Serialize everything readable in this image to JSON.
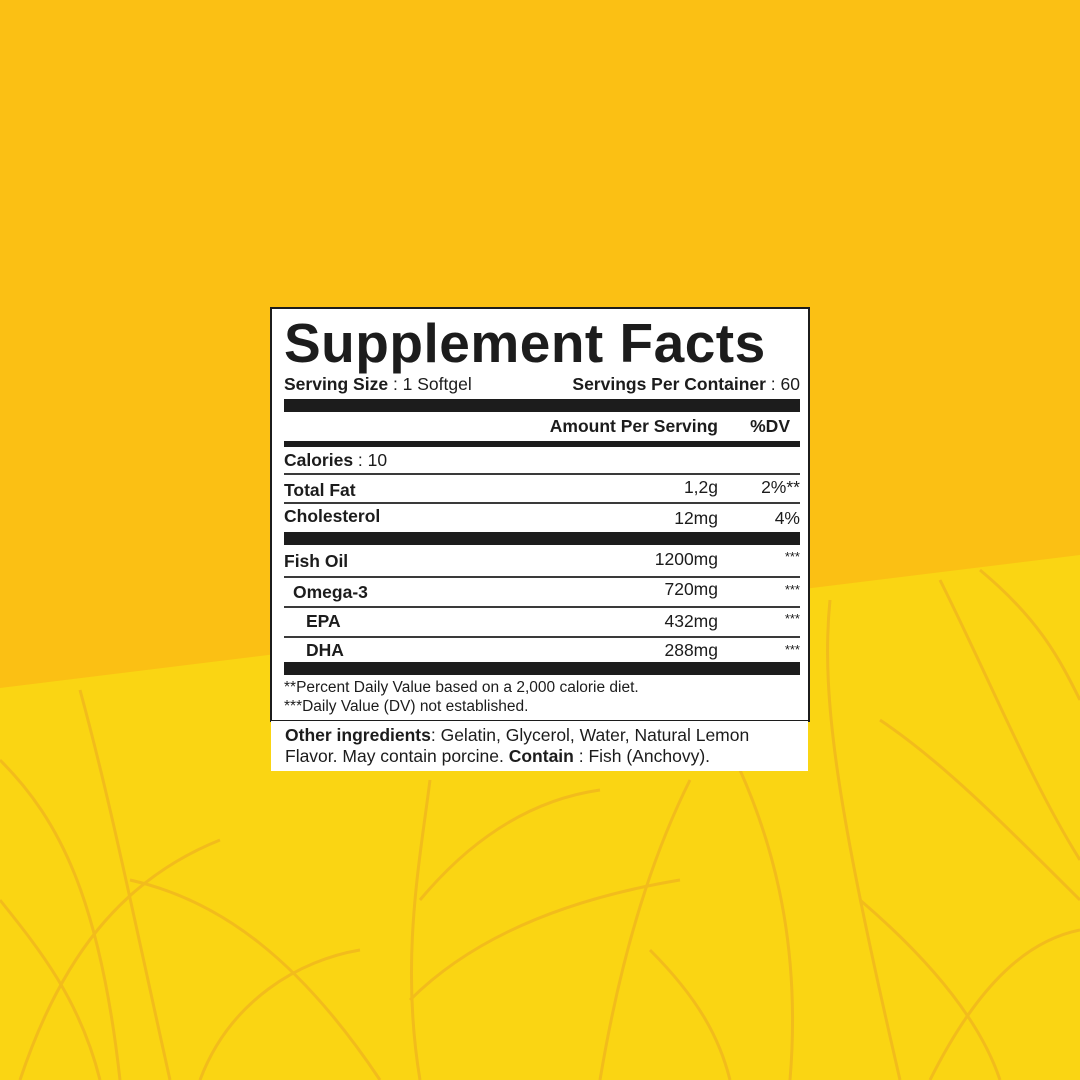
{
  "colors": {
    "background_top": "#FBC014",
    "background_bottom": "#FAD513",
    "leaf_lines": "#F5BE1A",
    "label_ink": "#1c1c1c"
  },
  "panel": {
    "title": "Supplement Facts",
    "serving_size_label": "Serving Size",
    "serving_size_value": " : 1 Softgel",
    "servings_label": "Servings Per Container",
    "servings_value": " : 60",
    "col_amount": "Amount Per Serving",
    "col_dv": "%DV",
    "calories_label": "Calories",
    "calories_value": " : 10",
    "rows": [
      {
        "name": "Total Fat",
        "amount": "1,2g",
        "dv": "2%**"
      },
      {
        "name": "Cholesterol",
        "amount": "12mg",
        "dv": "4%"
      },
      {
        "name": "Fish Oil",
        "amount": "1200mg",
        "dv": "***"
      },
      {
        "name": "Omega-3",
        "amount": "720mg",
        "dv": "***"
      },
      {
        "name": "EPA",
        "amount": "432mg",
        "dv": "***"
      },
      {
        "name": "DHA",
        "amount": "288mg",
        "dv": "***"
      }
    ],
    "footnote1": "**Percent Daily Value based on a 2,000 calorie diet.",
    "footnote2": "***Daily Value (DV) not established."
  },
  "ingredients": {
    "label": "Other ingredients",
    "text1": ": Gelatin, Glycerol, Water, Natural Lemon",
    "text2": "Flavor. May contain porcine. ",
    "contain_label": "Contain",
    "contain_value": " : Fish (Anchovy)."
  }
}
